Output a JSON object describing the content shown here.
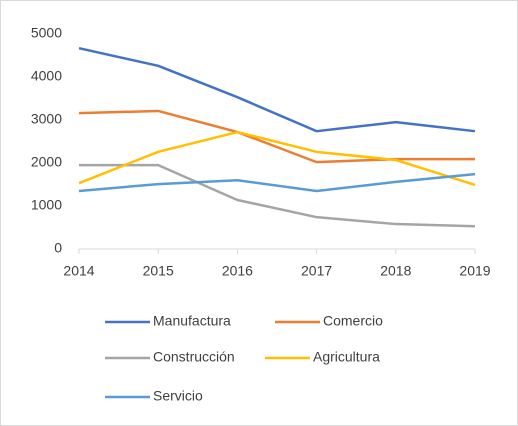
{
  "chart_data": {
    "type": "line",
    "x": [
      2014,
      2015,
      2016,
      2017,
      2018,
      2019
    ],
    "xlim": [
      2014,
      2019
    ],
    "xticks": [
      2014,
      2015,
      2016,
      2017,
      2018,
      2019
    ],
    "ylim": [
      0,
      5000
    ],
    "yticks": [
      0,
      1000,
      2000,
      3000,
      4000,
      5000
    ],
    "grid": false,
    "legend": "bottom",
    "series": [
      {
        "name": "Manufactura",
        "color": "#4472c4",
        "values": [
          4670,
          4260,
          3530,
          2740,
          2950,
          2740
        ]
      },
      {
        "name": "Comercio",
        "color": "#ed7d31",
        "values": [
          3160,
          3210,
          2720,
          2020,
          2090,
          2090
        ]
      },
      {
        "name": "Construcción",
        "color": "#a5a5a5",
        "values": [
          1950,
          1950,
          1140,
          740,
          580,
          530
        ]
      },
      {
        "name": "Agricultura",
        "color": "#ffc000",
        "values": [
          1530,
          2260,
          2720,
          2260,
          2070,
          1490
        ]
      },
      {
        "name": "Servicio",
        "color": "#5b9bd5",
        "values": [
          1350,
          1510,
          1600,
          1350,
          1560,
          1740
        ]
      }
    ]
  }
}
